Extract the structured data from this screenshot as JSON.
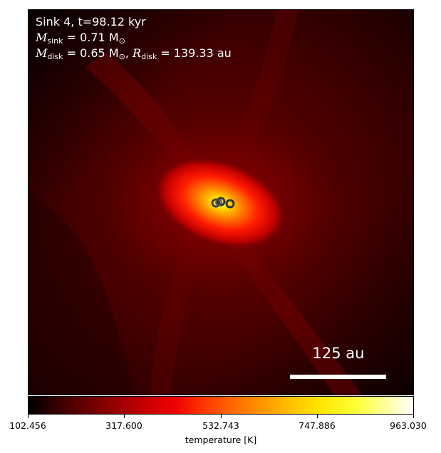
{
  "annotation": {
    "line1": "Sink 4, t=98.12 kyr",
    "msink_sym": "M",
    "msink_sub": "sink",
    "msink_value": " = 0.71 M",
    "msink_unit_sub": "⊙",
    "mdisk_sym": "M",
    "mdisk_sub": "disk",
    "mdisk_value": " = 0.65 M",
    "mdisk_unit_sub": "⊙",
    "rdisk_sep": ", ",
    "rdisk_sym": "R",
    "rdisk_sub": "disk",
    "rdisk_value": " = 139.33 au"
  },
  "scale_bar": {
    "label": "125 au"
  },
  "colorbar": {
    "label": "temperature [K]",
    "ticks": [
      "102.456",
      "317.600",
      "532.743",
      "747.886",
      "963.030"
    ],
    "colormap": "hot"
  },
  "sinks": {
    "count": 4,
    "marker": "open-circle-icon"
  }
}
